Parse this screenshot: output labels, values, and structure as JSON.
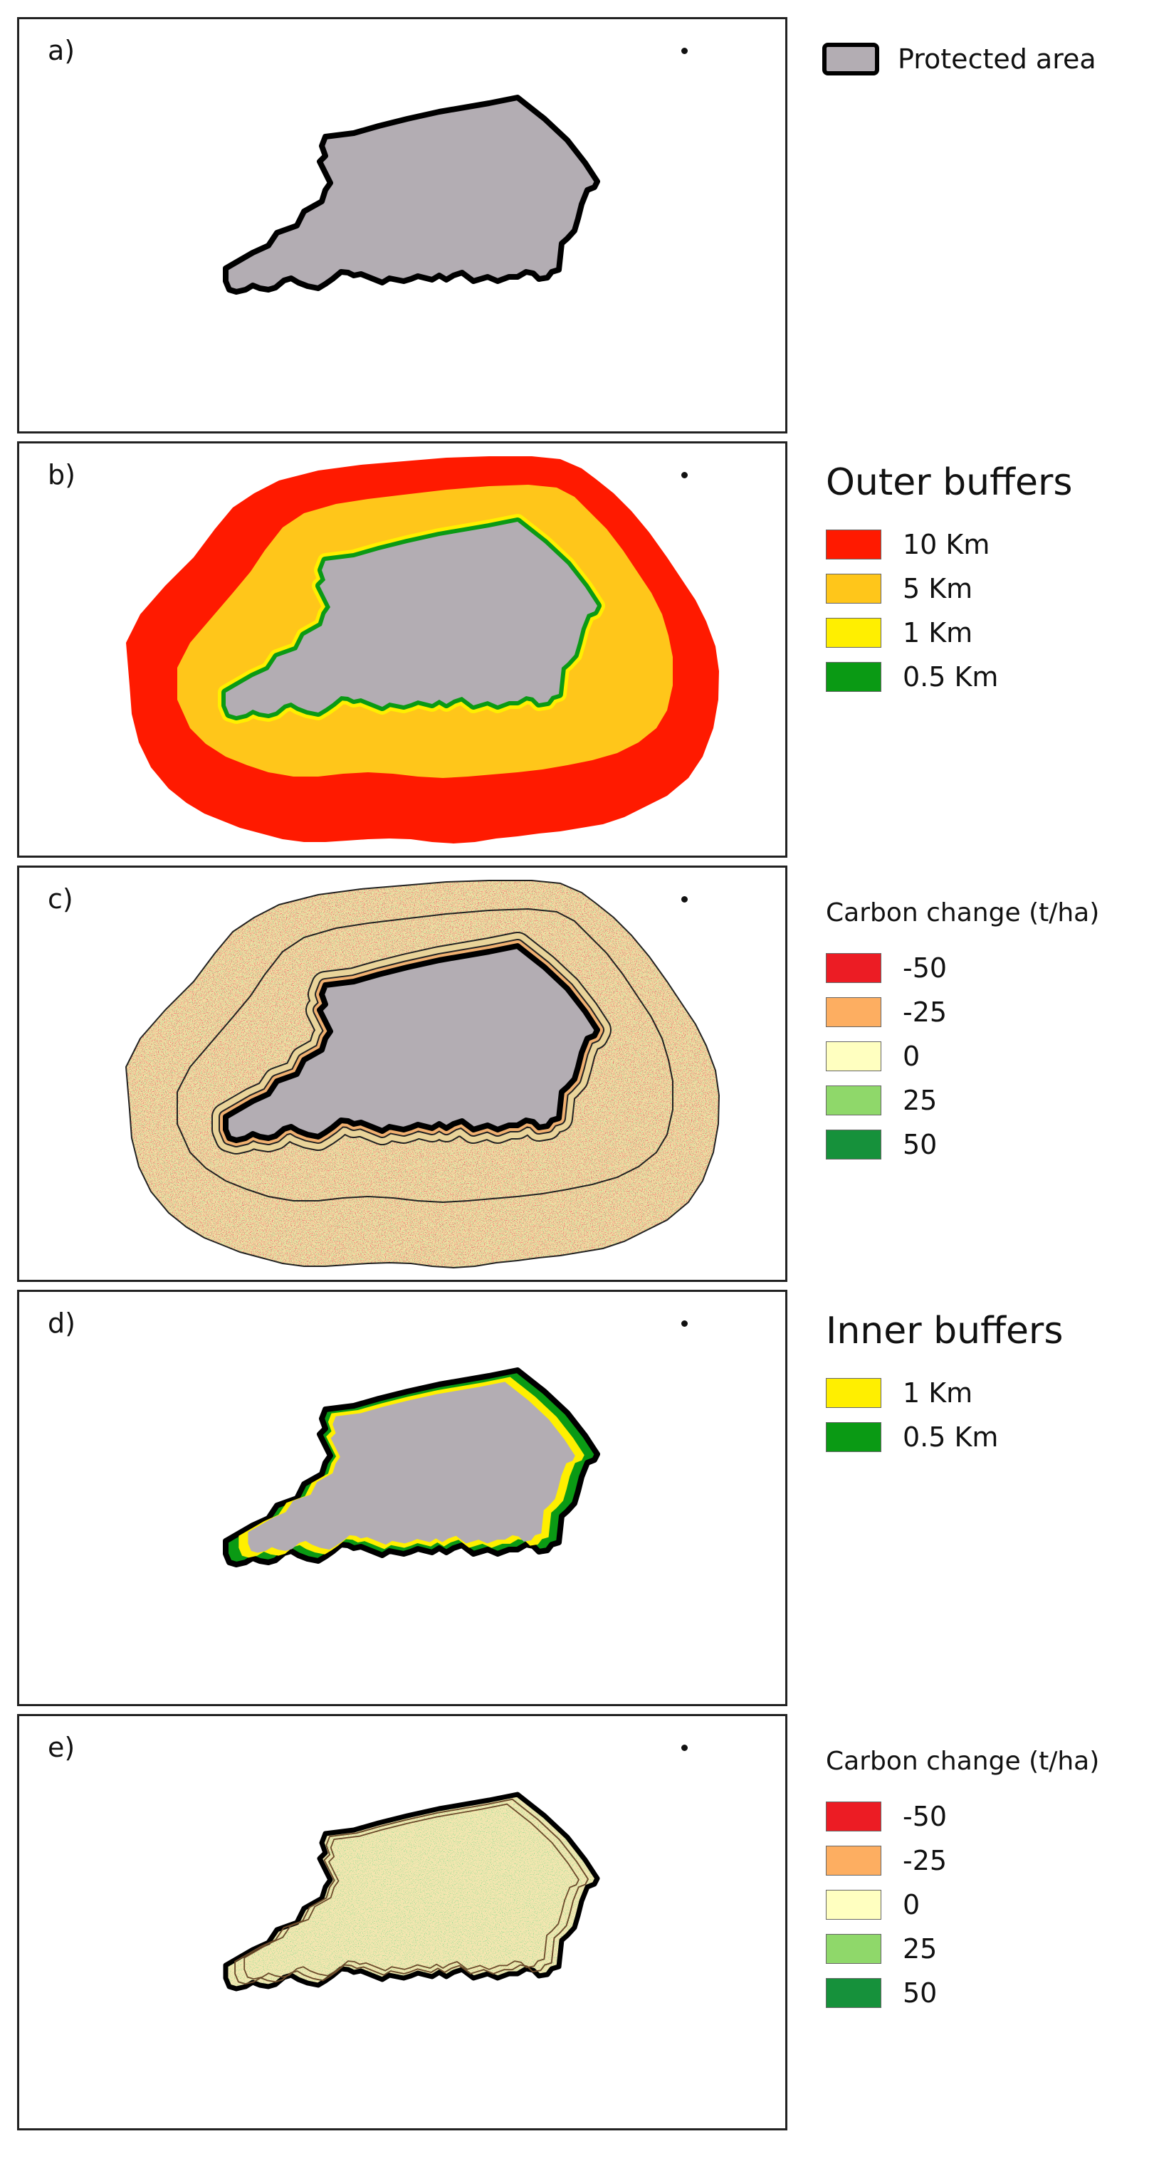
{
  "panels": [
    {
      "label": "a)"
    },
    {
      "label": "b)"
    },
    {
      "label": "c)"
    },
    {
      "label": "d)"
    },
    {
      "label": "e)"
    }
  ],
  "legend_a": {
    "label": "Protected area",
    "color": "#b3adb3"
  },
  "legend_b": {
    "title": "Outer buffers",
    "items": [
      {
        "label": "10 Km",
        "color": "#ff1a00"
      },
      {
        "label": "5 Km",
        "color": "#ffc61a"
      },
      {
        "label": "1 Km",
        "color": "#ffef00"
      },
      {
        "label": "0.5 Km",
        "color": "#0a9a14"
      }
    ]
  },
  "legend_c": {
    "title": "Carbon change (t/ha)",
    "items": [
      {
        "label": "-50",
        "color": "#ec1c24"
      },
      {
        "label": "-25",
        "color": "#fdae61"
      },
      {
        "label": "0",
        "color": "#ffffc0"
      },
      {
        "label": "25",
        "color": "#8fd86a"
      },
      {
        "label": "50",
        "color": "#16913b"
      }
    ]
  },
  "legend_d": {
    "title": "Inner buffers",
    "items": [
      {
        "label": "1 Km",
        "color": "#ffef00"
      },
      {
        "label": "0.5 Km",
        "color": "#0a9a14"
      }
    ]
  },
  "legend_e": {
    "title": "Carbon change (t/ha)",
    "items": [
      {
        "label": "-50",
        "color": "#ec1c24"
      },
      {
        "label": "-25",
        "color": "#fdae61"
      },
      {
        "label": "0",
        "color": "#ffffc0"
      },
      {
        "label": "25",
        "color": "#8fd86a"
      },
      {
        "label": "50",
        "color": "#16913b"
      }
    ]
  }
}
